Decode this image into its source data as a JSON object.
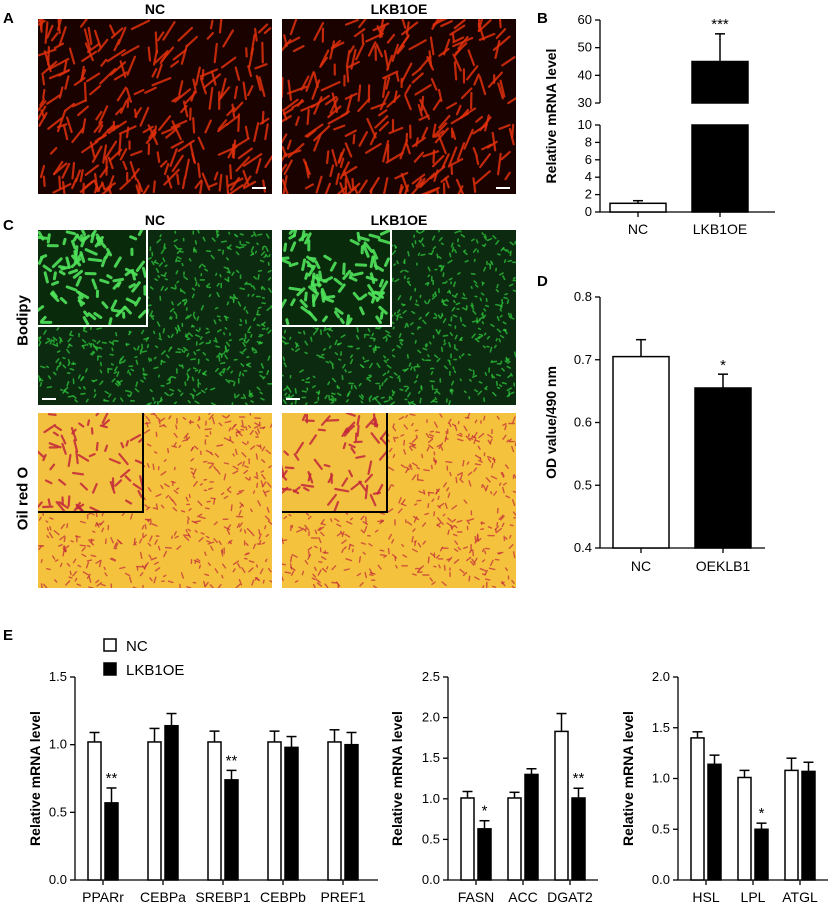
{
  "panel_letters": {
    "A": "A",
    "B": "B",
    "C": "C",
    "D": "D",
    "E": "E"
  },
  "panelA": {
    "titles": [
      "NC",
      "LKB1OE"
    ],
    "stain": "red-fluorescence"
  },
  "panelC": {
    "titles": [
      "NC",
      "LKB1OE"
    ],
    "rows": [
      "Bodipy",
      "Oil red O"
    ]
  },
  "colors": {
    "nc_bar": "#ffffff",
    "lkb1oe_bar": "#000000",
    "axis": "#000000",
    "red_cells": "#e0300c",
    "green_cells": "#2ec43a",
    "oil_bg": "#f4c23c",
    "oil_cells": "#c2283a"
  },
  "chart_data": [
    {
      "id": "B",
      "type": "bar",
      "ylabel": "Relative mRNA level",
      "categories": [
        "NC",
        "LKB1OE"
      ],
      "values": [
        1.0,
        45
      ],
      "errors": [
        0.3,
        10
      ],
      "broken_axis": true,
      "lower_range": [
        0,
        10
      ],
      "lower_ticks": [
        "0",
        "2",
        "4",
        "6",
        "8",
        "10"
      ],
      "upper_range": [
        30,
        60
      ],
      "upper_ticks": [
        "30",
        "40",
        "50",
        "60"
      ],
      "annotations": [
        "",
        "***"
      ]
    },
    {
      "id": "D",
      "type": "bar",
      "ylabel": "OD value/490 nm",
      "categories": [
        "NC",
        "OEKLB1"
      ],
      "values": [
        0.705,
        0.655
      ],
      "errors": [
        0.027,
        0.022
      ],
      "ylim": [
        0.4,
        0.8
      ],
      "yticks": [
        "0.4",
        "0.5",
        "0.6",
        "0.7",
        "0.8"
      ],
      "annotations": [
        "",
        "*"
      ]
    },
    {
      "id": "E1",
      "type": "bar",
      "ylabel": "Relative mRNA level",
      "categories": [
        "PPARr",
        "CEBPa",
        "SREBP1",
        "CEBPb",
        "PREF1"
      ],
      "series": [
        {
          "name": "NC",
          "values": [
            1.02,
            1.02,
            1.02,
            1.02,
            1.02
          ],
          "errors": [
            0.07,
            0.1,
            0.08,
            0.08,
            0.09
          ]
        },
        {
          "name": "LKB1OE",
          "values": [
            0.57,
            1.14,
            0.74,
            0.98,
            1.0
          ],
          "errors": [
            0.11,
            0.09,
            0.07,
            0.08,
            0.09
          ]
        }
      ],
      "ylim": [
        0,
        1.5
      ],
      "yticks": [
        "0.0",
        "0.5",
        "1.0",
        "1.5"
      ],
      "annotations": [
        [
          "",
          ""
        ],
        [
          "",
          ""
        ],
        [
          "",
          ""
        ],
        [
          "",
          ""
        ],
        [
          "",
          ""
        ]
      ],
      "lkb1_annotations": [
        "**",
        "",
        "**",
        "",
        ""
      ],
      "legend": [
        "NC",
        "LKB1OE"
      ]
    },
    {
      "id": "E2",
      "type": "bar",
      "ylabel": "Relative mRNA level",
      "categories": [
        "FASN",
        "ACC",
        "DGAT2"
      ],
      "series": [
        {
          "name": "NC",
          "values": [
            1.01,
            1.01,
            1.83
          ],
          "errors": [
            0.08,
            0.07,
            0.22
          ]
        },
        {
          "name": "LKB1OE",
          "values": [
            0.63,
            1.3,
            1.01
          ],
          "errors": [
            0.1,
            0.07,
            0.12
          ]
        }
      ],
      "ylim": [
        0,
        2.5
      ],
      "yticks": [
        "0.0",
        "0.5",
        "1.0",
        "1.5",
        "2.0",
        "2.5"
      ],
      "lkb1_annotations": [
        "*",
        "",
        "**"
      ]
    },
    {
      "id": "E3",
      "type": "bar",
      "ylabel": "Relative mRNA level",
      "categories": [
        "HSL",
        "LPL",
        "ATGL"
      ],
      "series": [
        {
          "name": "NC",
          "values": [
            1.4,
            1.01,
            1.08
          ],
          "errors": [
            0.06,
            0.07,
            0.12
          ]
        },
        {
          "name": "LKB1OE",
          "values": [
            1.14,
            0.5,
            1.07
          ],
          "errors": [
            0.09,
            0.06,
            0.09
          ]
        }
      ],
      "ylim": [
        0,
        2.0
      ],
      "yticks": [
        "0.0",
        "0.5",
        "1.0",
        "1.5",
        "2.0"
      ],
      "lkb1_annotations": [
        "",
        "*",
        ""
      ]
    }
  ]
}
